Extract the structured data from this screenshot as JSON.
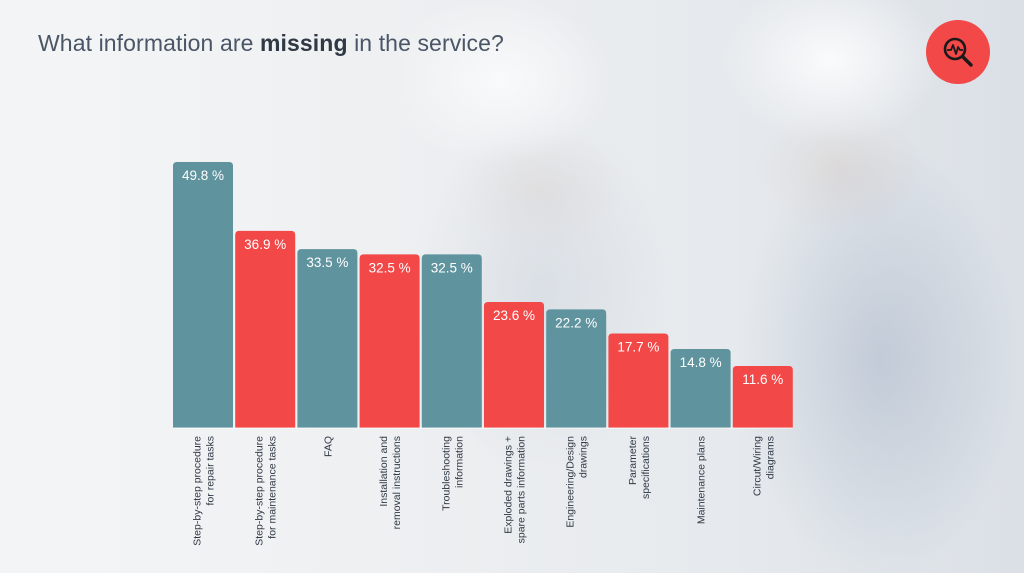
{
  "title": {
    "pre": "What information are ",
    "emphasis": "missing",
    "post": " in the service?"
  },
  "badge": {
    "icon": "magnifier-chart-icon",
    "color": "#f24848"
  },
  "chart_data": {
    "type": "bar",
    "title": "",
    "xlabel": "",
    "ylabel": "",
    "ylim": [
      0,
      50
    ],
    "grid": false,
    "value_suffix": " %",
    "colors": [
      "#5f939e",
      "#f24848"
    ],
    "categories": [
      [
        "Step-by-step procedure",
        "for repair tasks"
      ],
      [
        "Step-by-step procedure",
        "for maintenance tasks"
      ],
      [
        "FAQ"
      ],
      [
        "Installation and",
        "removal instructions"
      ],
      [
        "Troubleshooting",
        "information"
      ],
      [
        "Exploded drawings +",
        "spare parts information"
      ],
      [
        "Engineering/Design",
        "drawings"
      ],
      [
        "Parameter",
        "specifications"
      ],
      [
        "Maintenance plans"
      ],
      [
        "Circut/Wiring",
        "diagrams"
      ]
    ],
    "values": [
      49.8,
      36.9,
      33.5,
      32.5,
      32.5,
      23.6,
      22.2,
      17.7,
      14.8,
      11.6
    ],
    "value_labels": [
      "49.8 %",
      "36.9 %",
      "33.5 %",
      "32.5 %",
      "32.5 %",
      "23.6 %",
      "22.2 %",
      "17.7 %",
      "14.8 %",
      "11.6 %"
    ],
    "bar_colors": [
      "#5f939e",
      "#f24848",
      "#5f939e",
      "#f24848",
      "#5f939e",
      "#f24848",
      "#5f939e",
      "#f24848",
      "#5f939e",
      "#f24848"
    ]
  }
}
